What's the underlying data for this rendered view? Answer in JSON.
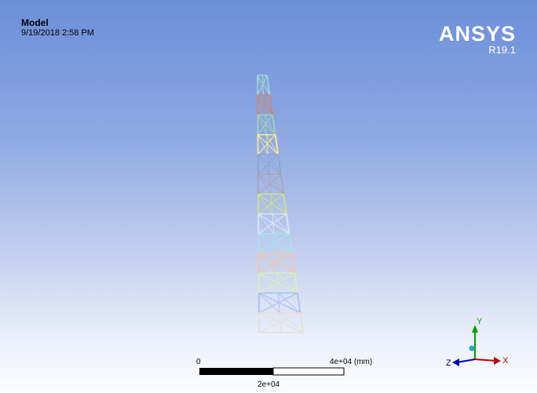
{
  "viewport": {
    "title": "Model",
    "timestamp": "9/19/2018 2:58 PM"
  },
  "brand": {
    "name": "ANSYS",
    "version": "R19.1"
  },
  "scale_bar": {
    "zero_label": "0",
    "max_label": "4e+04 (mm)",
    "mid_label": "2e+04"
  },
  "triad": {
    "x_label": "X",
    "y_label": "Y",
    "z_label": "Z",
    "x_color": "#c00000",
    "y_color": "#00a000",
    "z_color": "#0000c0"
  },
  "tower_colors": [
    "#9dd1d6",
    "#c88a7b",
    "#9fcfb0",
    "#f3e69a",
    "#8fa6c9",
    "#a8a8b6",
    "#c9e08a",
    "#d9e6f2",
    "#a6e3e8",
    "#f2c6a8",
    "#d6f0b8",
    "#a9c2ef",
    "#e6e0d8"
  ]
}
